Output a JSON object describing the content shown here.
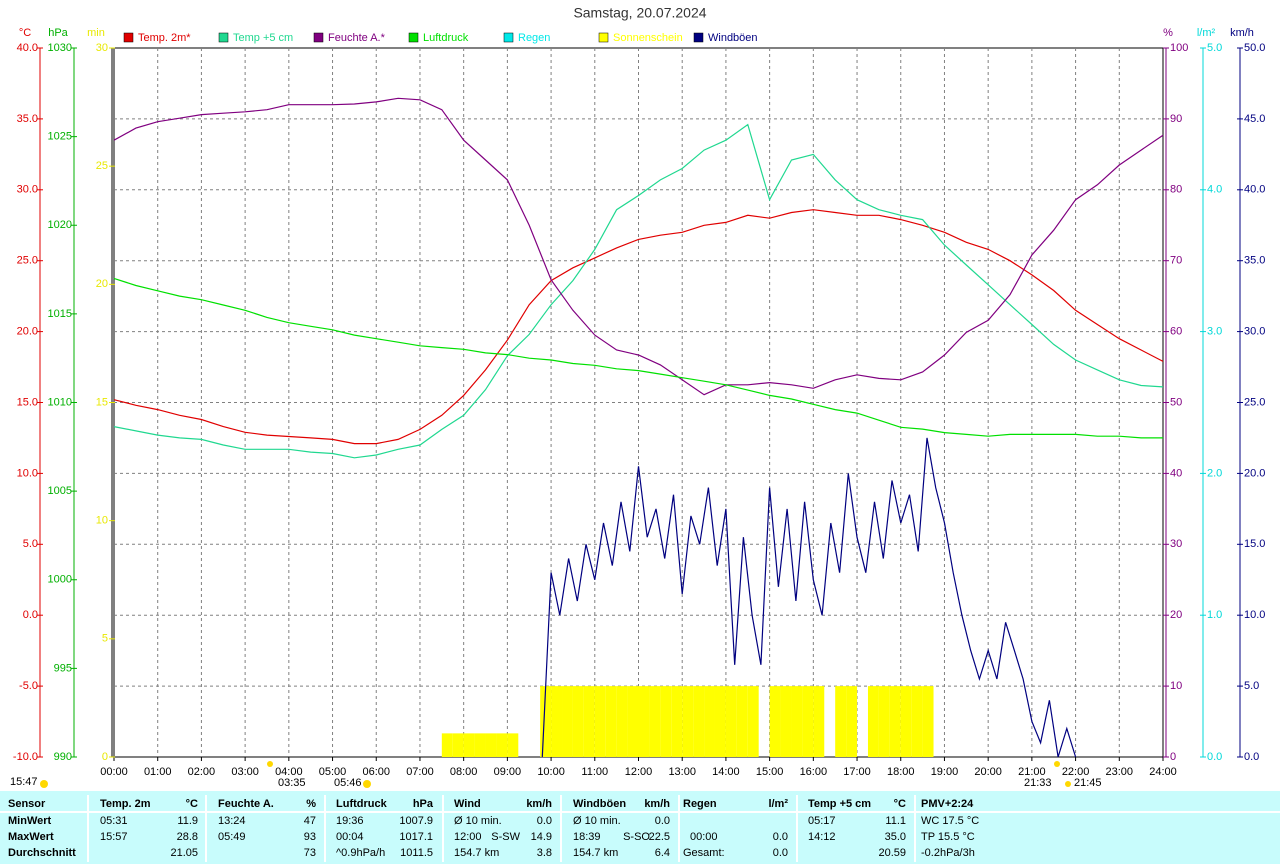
{
  "chart_data": {
    "type": "line",
    "title": "Samstag, 20.07.2024",
    "grid": true,
    "axes": [
      {
        "unit": "°C",
        "color": "#e00000",
        "lim": [
          -10,
          40
        ],
        "ticks": [
          {
            "value": -10,
            "label": "-10.0"
          },
          {
            "value": -5,
            "label": "-5.0"
          },
          {
            "value": 0,
            "label": "0.0"
          },
          {
            "value": 5,
            "label": "5.0"
          },
          {
            "value": 10,
            "label": "10.0"
          },
          {
            "value": 15,
            "label": "15.0"
          },
          {
            "value": 20,
            "label": "20.0"
          },
          {
            "value": 25,
            "label": "25.0"
          },
          {
            "value": 30,
            "label": "30.0"
          },
          {
            "value": 35,
            "label": "35.0"
          },
          {
            "value": 40,
            "label": "40.0"
          }
        ]
      },
      {
        "unit": "hPa",
        "color": "#00b000",
        "lim": [
          990,
          1030
        ],
        "ticks": [
          990,
          995,
          1000,
          1005,
          1010,
          1015,
          1020,
          1025,
          1030
        ]
      },
      {
        "unit": "min",
        "color": "#e8e800",
        "lim": [
          0,
          30
        ],
        "ticks": [
          0,
          5,
          10,
          15,
          20,
          25,
          30
        ]
      },
      {
        "unit": "%",
        "color": "#800080",
        "lim": [
          0,
          100
        ],
        "ticks": [
          0,
          10,
          20,
          30,
          40,
          50,
          60,
          70,
          80,
          90,
          100
        ]
      },
      {
        "unit": "l/m²",
        "color": "#00d8d8",
        "lim": [
          0,
          5
        ],
        "ticks": [
          {
            "value": 0,
            "label": "0.0"
          },
          {
            "value": 1,
            "label": "1.0"
          },
          {
            "value": 2,
            "label": "2.0"
          },
          {
            "value": 3,
            "label": "3.0"
          },
          {
            "value": 4,
            "label": "4.0"
          },
          {
            "value": 5,
            "label": "5.0"
          }
        ]
      },
      {
        "unit": "km/h",
        "color": "#000080",
        "lim": [
          0,
          50
        ],
        "ticks": [
          {
            "value": 0,
            "label": "0.0"
          },
          {
            "value": 5,
            "label": "5.0"
          },
          {
            "value": 10,
            "label": "10.0"
          },
          {
            "value": 15,
            "label": "15.0"
          },
          {
            "value": 20,
            "label": "20.0"
          },
          {
            "value": 25,
            "label": "25.0"
          },
          {
            "value": 30,
            "label": "30.0"
          },
          {
            "value": 35,
            "label": "35.0"
          },
          {
            "value": 40,
            "label": "40.0"
          },
          {
            "value": 45,
            "label": "45.0"
          },
          {
            "value": 50,
            "label": "50.0"
          }
        ]
      }
    ],
    "xlim": [
      0,
      24
    ],
    "xticks": [
      {
        "value": 0,
        "label": "00:00"
      },
      {
        "value": 1,
        "label": "01:00"
      },
      {
        "value": 2,
        "label": "02:00"
      },
      {
        "value": 3,
        "label": "03:00"
      },
      {
        "value": 4,
        "label": "04:00"
      },
      {
        "value": 5,
        "label": "05:00"
      },
      {
        "value": 6,
        "label": "06:00"
      },
      {
        "value": 7,
        "label": "07:00"
      },
      {
        "value": 8,
        "label": "08:00"
      },
      {
        "value": 9,
        "label": "09:00"
      },
      {
        "value": 10,
        "label": "10:00"
      },
      {
        "value": 11,
        "label": "11:00"
      },
      {
        "value": 12,
        "label": "12:00"
      },
      {
        "value": 13,
        "label": "13:00"
      },
      {
        "value": 14,
        "label": "14:00"
      },
      {
        "value": 15,
        "label": "15:00"
      },
      {
        "value": 16,
        "label": "16:00"
      },
      {
        "value": 17,
        "label": "17:00"
      },
      {
        "value": 18,
        "label": "18:00"
      },
      {
        "value": 19,
        "label": "19:00"
      },
      {
        "value": 20,
        "label": "20:00"
      },
      {
        "value": 21,
        "label": "21:00"
      },
      {
        "value": 22,
        "label": "22:00"
      },
      {
        "value": 23,
        "label": "23:00"
      },
      {
        "value": 24,
        "label": "24:00"
      }
    ],
    "x": [
      0,
      0.5,
      1,
      1.5,
      2,
      2.5,
      3,
      3.5,
      4,
      4.5,
      5,
      5.5,
      6,
      6.5,
      7,
      7.5,
      8,
      8.5,
      9,
      9.5,
      10,
      10.5,
      11,
      11.5,
      12,
      12.5,
      13,
      13.5,
      14,
      14.5,
      15,
      15.5,
      16,
      16.5,
      17,
      17.5,
      18,
      18.5,
      19,
      19.5,
      20,
      20.5,
      21,
      21.5,
      22,
      22.5,
      23,
      23.5,
      24
    ],
    "series": [
      {
        "name": "Temp. 2m*",
        "color": "#e00000",
        "axis": 0,
        "values": [
          15.2,
          14.8,
          14.5,
          14.1,
          13.8,
          13.3,
          12.9,
          12.7,
          12.6,
          12.5,
          12.4,
          12.1,
          12.1,
          12.4,
          13.1,
          14.1,
          15.5,
          17.3,
          19.4,
          21.9,
          23.6,
          24.5,
          25.2,
          25.9,
          26.5,
          26.8,
          27.0,
          27.5,
          27.7,
          28.2,
          28.0,
          28.4,
          28.6,
          28.4,
          28.2,
          28.2,
          27.9,
          27.5,
          27.0,
          26.3,
          25.8,
          25.0,
          24.0,
          22.9,
          21.5,
          20.5,
          19.5,
          18.7,
          17.9
        ]
      },
      {
        "name": "Temp +5 cm",
        "color": "#20d890",
        "axis": 0,
        "values": [
          13.3,
          13.0,
          12.7,
          12.5,
          12.4,
          12.0,
          11.7,
          11.7,
          11.7,
          11.5,
          11.4,
          11.1,
          11.3,
          11.7,
          12.0,
          13.1,
          14.1,
          15.9,
          18.3,
          19.8,
          21.9,
          23.6,
          25.8,
          28.6,
          29.6,
          30.7,
          31.5,
          32.8,
          33.5,
          34.6,
          29.3,
          32.1,
          32.5,
          30.7,
          29.3,
          28.6,
          28.2,
          27.9,
          26.1,
          24.7,
          23.3,
          21.9,
          20.5,
          19.1,
          18.0,
          17.3,
          16.6,
          16.2,
          16.1
        ]
      },
      {
        "name": "Feuchte A.*",
        "color": "#800080",
        "axis": 3,
        "values": [
          87.0,
          88.7,
          89.6,
          90.1,
          90.6,
          90.8,
          91.0,
          91.3,
          92.0,
          92.0,
          92.0,
          92.1,
          92.4,
          92.9,
          92.7,
          91.3,
          87.0,
          84.2,
          81.4,
          75.0,
          67.3,
          63.0,
          59.5,
          57.4,
          56.7,
          55.3,
          53.2,
          51.1,
          52.5,
          52.5,
          52.8,
          52.5,
          52.0,
          53.2,
          53.9,
          53.4,
          53.2,
          54.3,
          56.7,
          59.9,
          61.6,
          65.2,
          70.8,
          74.3,
          78.6,
          80.7,
          83.5,
          85.6,
          87.7
        ]
      },
      {
        "name": "Luftdruck",
        "color": "#00e000",
        "axis": 1,
        "values": [
          1017.0,
          1016.6,
          1016.3,
          1016.0,
          1015.8,
          1015.5,
          1015.2,
          1014.8,
          1014.5,
          1014.3,
          1014.1,
          1013.8,
          1013.6,
          1013.4,
          1013.2,
          1013.1,
          1013.0,
          1012.8,
          1012.7,
          1012.5,
          1012.4,
          1012.2,
          1012.1,
          1011.9,
          1011.8,
          1011.6,
          1011.4,
          1011.2,
          1011.0,
          1010.7,
          1010.4,
          1010.2,
          1009.9,
          1009.6,
          1009.4,
          1009.0,
          1008.6,
          1008.5,
          1008.3,
          1008.2,
          1008.1,
          1008.2,
          1008.2,
          1008.2,
          1008.2,
          1008.1,
          1008.1,
          1008.0,
          1008.0
        ]
      },
      {
        "name": "Regen",
        "color": "#00e8e8",
        "axis": 4
      },
      {
        "name": "Sonnenschein",
        "color": "#ffff00",
        "axis": 2,
        "type": "bar",
        "x": [
          7.5,
          7.75,
          8,
          8.25,
          8.5,
          8.75,
          9,
          9.25,
          9.5,
          9.75,
          10,
          10.25,
          10.5,
          10.75,
          11,
          11.25,
          11.5,
          11.75,
          12,
          12.25,
          12.5,
          12.75,
          13,
          13.25,
          13.5,
          13.75,
          14,
          14.25,
          14.5,
          14.75,
          15,
          15.25,
          15.5,
          15.75,
          16,
          16.25,
          16.5,
          16.75,
          17,
          17.25,
          17.5,
          17.75,
          18,
          18.25,
          18.5
        ],
        "values": [
          1,
          1,
          1,
          1,
          1,
          1,
          1,
          0,
          0,
          3,
          3,
          3,
          3,
          3,
          3,
          3,
          3,
          3,
          3,
          3,
          3,
          3,
          3,
          3,
          3,
          3,
          3,
          3,
          3,
          0,
          3,
          3,
          3,
          3,
          3,
          0,
          3,
          3,
          0,
          3,
          3,
          3,
          3,
          3,
          3
        ]
      },
      {
        "name": "Windböen",
        "color": "#000080",
        "axis": 5,
        "x": [
          9.8,
          10.0,
          10.2,
          10.4,
          10.6,
          10.8,
          11.0,
          11.2,
          11.4,
          11.6,
          11.8,
          12.0,
          12.2,
          12.4,
          12.6,
          12.8,
          13.0,
          13.2,
          13.4,
          13.6,
          13.8,
          14.0,
          14.2,
          14.4,
          14.6,
          14.8,
          15.0,
          15.2,
          15.4,
          15.6,
          15.8,
          16.0,
          16.2,
          16.4,
          16.6,
          16.8,
          17.0,
          17.2,
          17.4,
          17.6,
          17.8,
          18.0,
          18.2,
          18.4,
          18.6,
          18.8,
          19.0,
          19.2,
          19.4,
          19.6,
          19.8,
          20.0,
          20.2,
          20.4,
          20.6,
          20.8,
          21.0,
          21.2,
          21.4,
          21.6,
          21.8,
          22.0
        ],
        "values": [
          0,
          13,
          10,
          14,
          11,
          15,
          12.5,
          16.5,
          13.5,
          18,
          14.5,
          20.5,
          15.5,
          17.5,
          14,
          18.5,
          11.5,
          17,
          15,
          19,
          13.5,
          17.5,
          6.5,
          15.5,
          10,
          6.5,
          19,
          12,
          17.5,
          11,
          18,
          12.5,
          10,
          16.5,
          13,
          20,
          15.5,
          13,
          18,
          14,
          19.5,
          16.5,
          18.5,
          14.5,
          22.5,
          19,
          16.5,
          13,
          10,
          7.5,
          5.5,
          7.5,
          5.5,
          9.5,
          7.5,
          5.5,
          2.5,
          1,
          4,
          0,
          2,
          0
        ]
      }
    ],
    "annotations": [
      "03:35",
      "05:46",
      "21:33",
      "21:45",
      "15:47"
    ]
  },
  "table": {
    "header": [
      "Sensor",
      "Temp. 2m",
      "°C",
      "Feuchte A.",
      "%",
      "Luftdruck",
      "hPa",
      "Wind",
      null,
      "km/h",
      "Windböen",
      null,
      "km/h",
      "Regen",
      "l/m²",
      "Temp +5 cm",
      "°C",
      "PMV+2:24"
    ],
    "rows": [
      [
        "MinWert",
        "05:31",
        "11.9",
        "13:24",
        "47",
        "19:36",
        "1007.9",
        "Ø 10 min.",
        null,
        "0.0",
        "Ø 10 min.",
        null,
        "0.0",
        null,
        null,
        "05:17",
        "11.1",
        "WC 17.5 °C"
      ],
      [
        "MaxWert",
        "15:57",
        "28.8",
        "05:49",
        "93",
        "00:04",
        "1017.1",
        "12:00",
        "S-SW",
        "14.9",
        "18:39",
        "S-SO",
        "22.5",
        "00:00",
        "0.0",
        "14:12",
        "35.0",
        "TP 15.5 °C"
      ],
      [
        "Durchschnitt",
        null,
        "21.05",
        null,
        "73",
        "^0.9hPa/h",
        "1011.5",
        "154.7 km",
        null,
        "3.8",
        "154.7 km",
        null,
        "6.4",
        "Gesamt:",
        "0.0",
        null,
        "20.59",
        "-0.2hPa/3h"
      ]
    ]
  }
}
